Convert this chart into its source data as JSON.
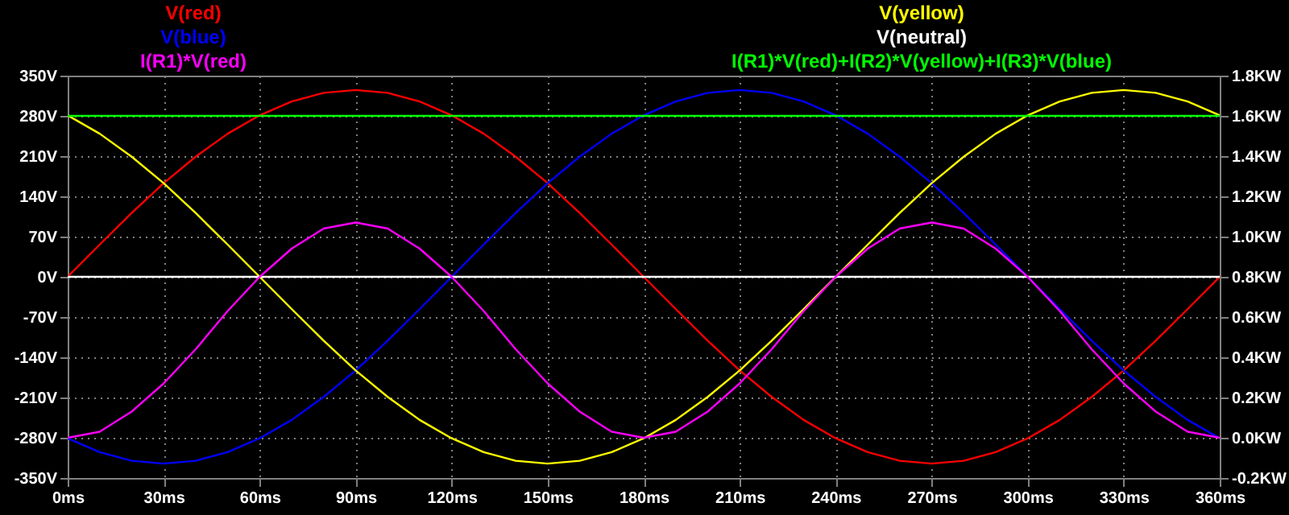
{
  "chart_data": {
    "type": "line",
    "x": [
      0,
      10,
      20,
      30,
      40,
      50,
      60,
      70,
      80,
      90,
      100,
      110,
      120,
      130,
      140,
      150,
      160,
      170,
      180,
      190,
      200,
      210,
      220,
      230,
      240,
      250,
      260,
      270,
      280,
      290,
      300,
      310,
      320,
      330,
      340,
      350,
      360
    ],
    "series": [
      {
        "name": "V(red)",
        "color": "#ff0000",
        "values": [
          0,
          56,
          111,
          163,
          209,
          249,
          281,
          305,
          320,
          325,
          320,
          305,
          281,
          249,
          209,
          163,
          111,
          56,
          0,
          -56,
          -111,
          -163,
          -209,
          -249,
          -281,
          -305,
          -320,
          -325,
          -320,
          -305,
          -281,
          -249,
          -209,
          -163,
          -111,
          -56,
          0
        ]
      },
      {
        "name": "V(blue)",
        "color": "#0000ff",
        "values": [
          -281,
          -305,
          -320,
          -325,
          -320,
          -305,
          -281,
          -249,
          -209,
          -163,
          -111,
          -56,
          0,
          56,
          111,
          163,
          209,
          249,
          281,
          305,
          320,
          325,
          320,
          305,
          281,
          249,
          209,
          163,
          111,
          56,
          0,
          -56,
          -111,
          -163,
          -209,
          -249,
          -281
        ]
      },
      {
        "name": "I(R1)*V(red)",
        "color": "#ff00ff",
        "axis": "y2",
        "values": [
          0,
          0.03,
          0.13,
          0.27,
          0.44,
          0.63,
          0.8,
          0.94,
          1.04,
          1.07,
          1.04,
          0.94,
          0.8,
          0.63,
          0.44,
          0.27,
          0.13,
          0.03,
          0,
          0.03,
          0.13,
          0.27,
          0.44,
          0.63,
          0.8,
          0.94,
          1.04,
          1.07,
          1.04,
          0.94,
          0.8,
          0.63,
          0.44,
          0.27,
          0.13,
          0.03,
          0
        ]
      },
      {
        "name": "V(yellow)",
        "color": "#ffff00",
        "values": [
          281,
          249,
          209,
          163,
          111,
          56,
          0,
          -56,
          -111,
          -163,
          -209,
          -249,
          -281,
          -305,
          -320,
          -325,
          -320,
          -305,
          -281,
          -249,
          -209,
          -163,
          -111,
          -56,
          0,
          56,
          111,
          163,
          209,
          249,
          281,
          305,
          320,
          325,
          320,
          305,
          281
        ]
      },
      {
        "name": "V(neutral)",
        "color": "#ffffff",
        "values": [
          0,
          0,
          0,
          0,
          0,
          0,
          0,
          0,
          0,
          0,
          0,
          0,
          0,
          0,
          0,
          0,
          0,
          0,
          0,
          0,
          0,
          0,
          0,
          0,
          0,
          0,
          0,
          0,
          0,
          0,
          0,
          0,
          0,
          0,
          0,
          0,
          0
        ]
      },
      {
        "name": "I(R1)*V(red)+I(R2)*V(yellow)+I(R3)*V(blue)",
        "color": "#00ff00",
        "axis": "y2",
        "values": [
          1.6,
          1.6,
          1.6,
          1.6,
          1.6,
          1.6,
          1.6,
          1.6,
          1.6,
          1.6,
          1.6,
          1.6,
          1.6,
          1.6,
          1.6,
          1.6,
          1.6,
          1.6,
          1.6,
          1.6,
          1.6,
          1.6,
          1.6,
          1.6,
          1.6,
          1.6,
          1.6,
          1.6,
          1.6,
          1.6,
          1.6,
          1.6,
          1.6,
          1.6,
          1.6,
          1.6,
          1.6
        ]
      }
    ],
    "xlim": [
      0,
      360
    ],
    "xticks": [
      {
        "value": 0,
        "label": "0ms"
      },
      {
        "value": 30,
        "label": "30ms"
      },
      {
        "value": 60,
        "label": "60ms"
      },
      {
        "value": 90,
        "label": "90ms"
      },
      {
        "value": 120,
        "label": "120ms"
      },
      {
        "value": 150,
        "label": "150ms"
      },
      {
        "value": 180,
        "label": "180ms"
      },
      {
        "value": 210,
        "label": "210ms"
      },
      {
        "value": 240,
        "label": "240ms"
      },
      {
        "value": 270,
        "label": "270ms"
      },
      {
        "value": 300,
        "label": "300ms"
      },
      {
        "value": 330,
        "label": "330ms"
      },
      {
        "value": 360,
        "label": "360ms"
      }
    ],
    "ylim": [
      -350,
      350
    ],
    "yticks": [
      {
        "value": -350,
        "label": "-350V"
      },
      {
        "value": -280,
        "label": "-280V"
      },
      {
        "value": -210,
        "label": "-210V"
      },
      {
        "value": -140,
        "label": "-140V"
      },
      {
        "value": -70,
        "label": "-70V"
      },
      {
        "value": 0,
        "label": "0V"
      },
      {
        "value": 70,
        "label": "70V"
      },
      {
        "value": 140,
        "label": "140V"
      },
      {
        "value": 210,
        "label": "210V"
      },
      {
        "value": 280,
        "label": "280V"
      },
      {
        "value": 350,
        "label": "350V"
      }
    ],
    "y2lim": [
      -0.2,
      1.8
    ],
    "y2ticks": [
      {
        "value": -0.2,
        "label": "-0.2KW"
      },
      {
        "value": 0,
        "label": "0.0KW"
      },
      {
        "value": 0.2,
        "label": "0.2KW"
      },
      {
        "value": 0.4,
        "label": "0.4KW"
      },
      {
        "value": 0.6,
        "label": "0.6KW"
      },
      {
        "value": 0.8,
        "label": "0.8KW"
      },
      {
        "value": 1.0,
        "label": "1.0KW"
      },
      {
        "value": 1.2,
        "label": "1.2KW"
      },
      {
        "value": 1.4,
        "label": "1.4KW"
      },
      {
        "value": 1.6,
        "label": "1.6KW"
      },
      {
        "value": 1.8,
        "label": "1.8KW"
      }
    ],
    "grid": true,
    "legend": "top",
    "line_style": "solid",
    "marker": "none"
  }
}
